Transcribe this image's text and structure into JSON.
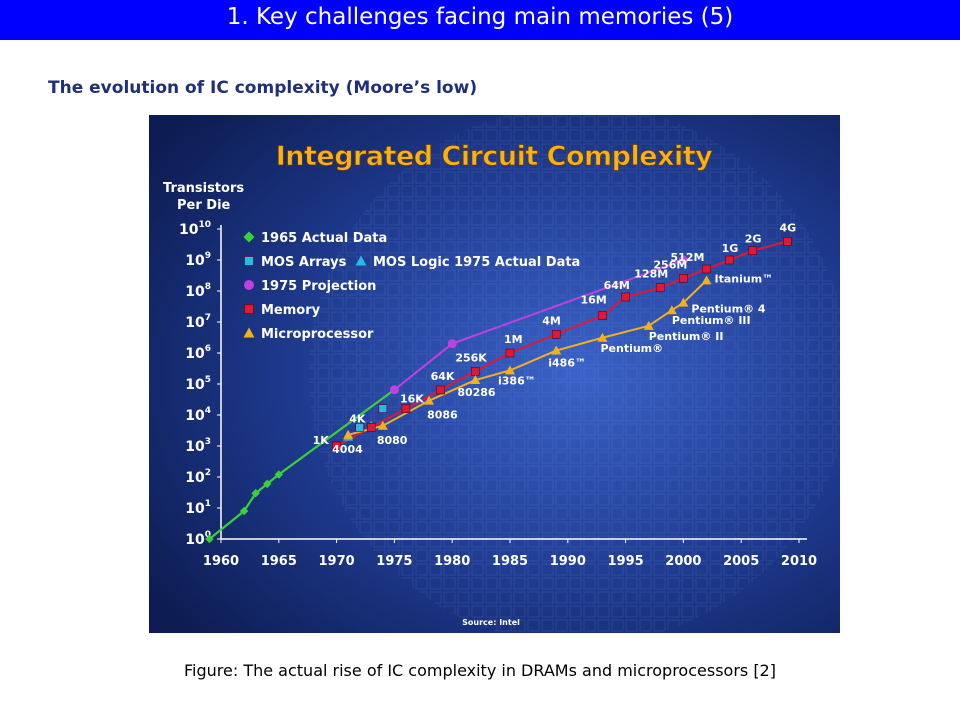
{
  "slide": {
    "title": "1. Key challenges facing main memories (5)",
    "subtitle": "The evolution of IC complexity (Moore’s low)",
    "caption": "Figure: The actual rise of IC complexity in DRAMs and microprocessors [2]"
  },
  "colors": {
    "title_bar": "#0000ff",
    "chart_bg_dark": "#0d1c52",
    "chart_bg_light": "#3a62c8",
    "actual_1965": "#3ad13a",
    "mos_arrays": "#28b9e8",
    "projection_1975": "#c040e0",
    "memory": "#e01838",
    "microprocessor": "#f0b020"
  },
  "chart_data": {
    "type": "line",
    "title": "Integrated Circuit Complexity",
    "ylabel": "Transistors Per Die",
    "source": "Source: Intel",
    "y_scale": "log",
    "xlim": [
      1960,
      2010
    ],
    "ylim_exponent": [
      0,
      10
    ],
    "x_ticks": [
      "1960",
      "1965",
      "1970",
      "1975",
      "1980",
      "1985",
      "1990",
      "1995",
      "2000",
      "2005",
      "2010"
    ],
    "y_ticks": [
      {
        "base": "10",
        "exp": "10"
      },
      {
        "base": "10",
        "exp": "9"
      },
      {
        "base": "10",
        "exp": "8"
      },
      {
        "base": "10",
        "exp": "7"
      },
      {
        "base": "10",
        "exp": "6"
      },
      {
        "base": "10",
        "exp": "5"
      },
      {
        "base": "10",
        "exp": "4"
      },
      {
        "base": "10",
        "exp": "3"
      },
      {
        "base": "10",
        "exp": "2"
      },
      {
        "base": "10",
        "exp": "1"
      },
      {
        "base": "10",
        "exp": "0"
      }
    ],
    "legend": [
      {
        "label": "1965 Actual Data",
        "marker": "diamond",
        "color": "#3ad13a"
      },
      {
        "label": "MOS Arrays",
        "marker": "square",
        "color": "#28b9e8"
      },
      {
        "label": "MOS Logic 1975 Actual Data",
        "marker": "triangle",
        "color": "#28b9e8"
      },
      {
        "label": "1975 Projection",
        "marker": "circle",
        "color": "#c040e0"
      },
      {
        "label": "Memory",
        "marker": "square",
        "color": "#e01838"
      },
      {
        "label": "Microprocessor",
        "marker": "triangle",
        "color": "#f0b020"
      }
    ],
    "series": [
      {
        "name": "1965 Actual Data",
        "color": "#3ad13a",
        "marker": "diamond",
        "points": [
          {
            "x": 1959,
            "y": 1
          },
          {
            "x": 1962,
            "y": 8
          },
          {
            "x": 1963,
            "y": 30
          },
          {
            "x": 1964,
            "y": 60
          },
          {
            "x": 1965,
            "y": 120
          },
          {
            "x": 1975,
            "y": 65000
          }
        ]
      },
      {
        "name": "MOS Arrays",
        "color": "#28b9e8",
        "marker": "square",
        "points": [
          {
            "x": 1970,
            "y": 1000
          },
          {
            "x": 1972,
            "y": 4000
          },
          {
            "x": 1974,
            "y": 16000
          }
        ]
      },
      {
        "name": "MOS Logic 1975 Actual Data",
        "color": "#28b9e8",
        "marker": "triangle",
        "points": [
          {
            "x": 1971,
            "y": 2000
          },
          {
            "x": 1973,
            "y": 4500
          }
        ]
      },
      {
        "name": "1975 Projection",
        "color": "#c040e0",
        "marker": "circle",
        "points": [
          {
            "x": 1975,
            "y": 65000
          },
          {
            "x": 1980,
            "y": 2000000
          },
          {
            "x": 2000,
            "y": 1000000000
          }
        ]
      },
      {
        "name": "Memory",
        "color": "#e01838",
        "marker": "square",
        "points": [
          {
            "x": 1970,
            "y": 1000,
            "label": "1K"
          },
          {
            "x": 1973,
            "y": 4000,
            "label": "4K"
          },
          {
            "x": 1976,
            "y": 16000,
            "label": "16K"
          },
          {
            "x": 1979,
            "y": 64000,
            "label": "64K"
          },
          {
            "x": 1982,
            "y": 256000,
            "label": "256K"
          },
          {
            "x": 1985,
            "y": 1000000,
            "label": "1M"
          },
          {
            "x": 1989,
            "y": 4000000,
            "label": "4M"
          },
          {
            "x": 1993,
            "y": 16000000,
            "label": "16M"
          },
          {
            "x": 1995,
            "y": 64000000,
            "label": "64M"
          },
          {
            "x": 1998,
            "y": 128000000,
            "label": "128M"
          },
          {
            "x": 2000,
            "y": 256000000,
            "label": "256M"
          },
          {
            "x": 2002,
            "y": 512000000,
            "label": "512M"
          },
          {
            "x": 2004,
            "y": 1000000000,
            "label": "1G"
          },
          {
            "x": 2006,
            "y": 2000000000,
            "label": "2G"
          },
          {
            "x": 2009,
            "y": 4000000000,
            "label": "4G"
          }
        ]
      },
      {
        "name": "Microprocessor",
        "color": "#f0b020",
        "marker": "triangle",
        "points": [
          {
            "x": 1971,
            "y": 2300,
            "label": "4004"
          },
          {
            "x": 1974,
            "y": 4500,
            "label": "8080"
          },
          {
            "x": 1978,
            "y": 29000,
            "label": "8086"
          },
          {
            "x": 1982,
            "y": 134000,
            "label": "80286"
          },
          {
            "x": 1985,
            "y": 275000,
            "label": "i386™"
          },
          {
            "x": 1989,
            "y": 1200000,
            "label": "i486™"
          },
          {
            "x": 1993,
            "y": 3100000,
            "label": "Pentium®"
          },
          {
            "x": 1997,
            "y": 7500000,
            "label": "Pentium® II"
          },
          {
            "x": 1999,
            "y": 24000000,
            "label": "Pentium® III"
          },
          {
            "x": 2000,
            "y": 42000000,
            "label": "Pentium® 4"
          },
          {
            "x": 2002,
            "y": 220000000,
            "label": "Itanium™"
          }
        ]
      }
    ]
  }
}
